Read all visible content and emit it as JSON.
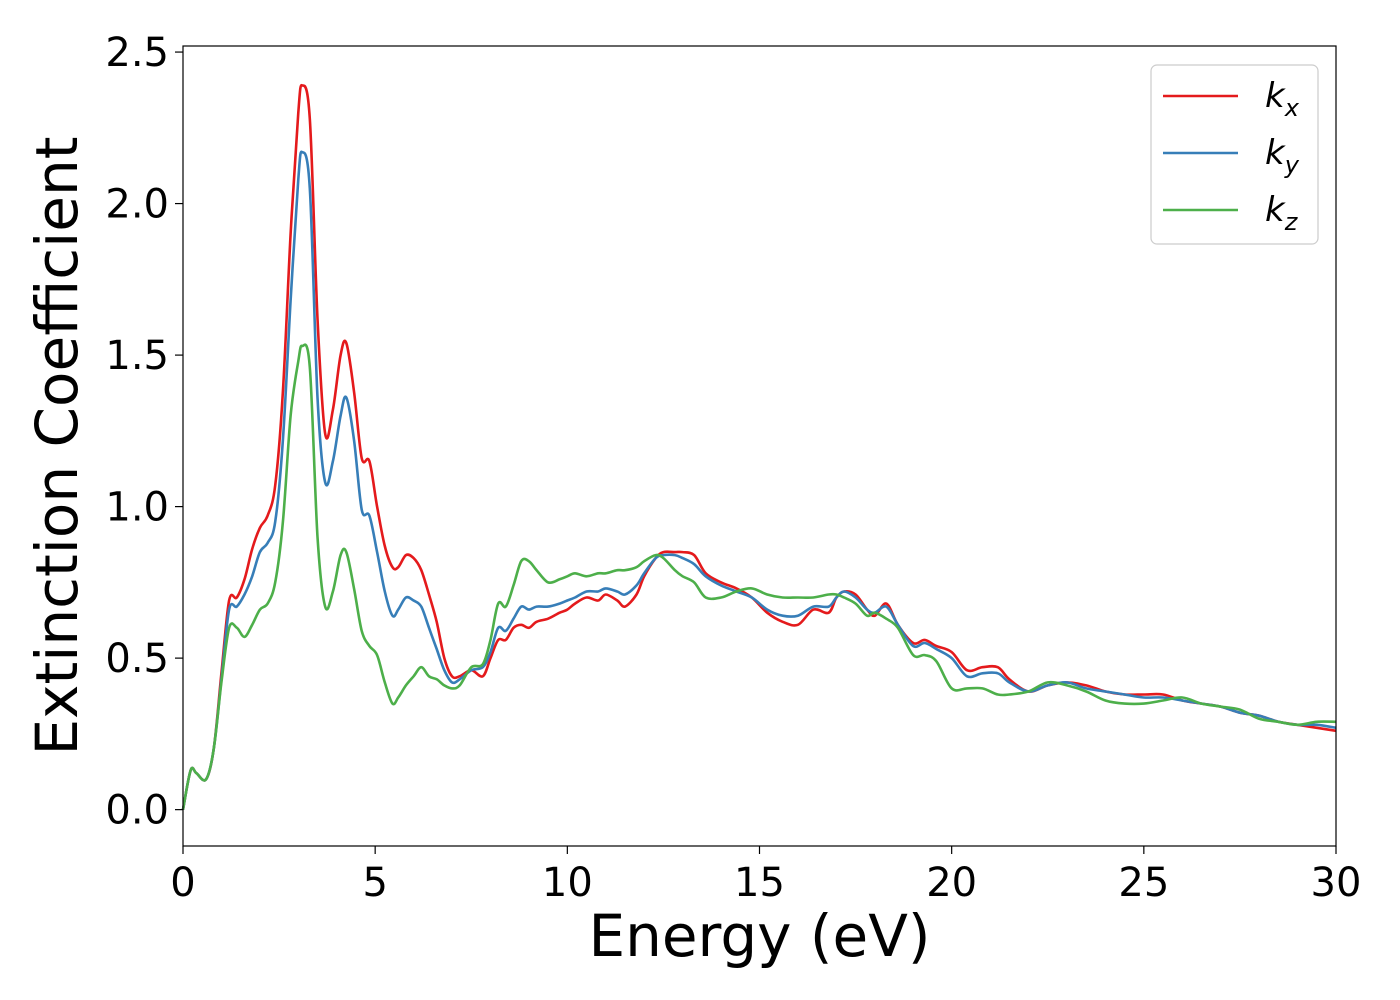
{
  "chart_data": {
    "type": "line",
    "xlabel": "Energy (eV)",
    "ylabel": "Extinction Coefficient",
    "xlim": [
      0,
      30
    ],
    "ylim": [
      -0.12,
      2.52
    ],
    "xticks": [
      0,
      5,
      10,
      15,
      20,
      25,
      30
    ],
    "xtick_labels": [
      "0",
      "5",
      "10",
      "15",
      "20",
      "25",
      "30"
    ],
    "yticks": [
      0.0,
      0.5,
      1.0,
      1.5,
      2.0,
      2.5
    ],
    "ytick_labels": [
      "0.0",
      "0.5",
      "1.0",
      "1.5",
      "2.0",
      "2.5"
    ],
    "grid": false,
    "legend_position": "top-right",
    "series": [
      {
        "name": "kx",
        "name_main": "k",
        "name_sub": "x",
        "color": "#e41a1c",
        "x": [
          0,
          0.2,
          0.35,
          0.6,
          0.8,
          1.0,
          1.2,
          1.4,
          1.6,
          1.8,
          2.0,
          2.2,
          2.4,
          2.6,
          2.8,
          3.0,
          3.1,
          3.3,
          3.5,
          3.7,
          3.9,
          4.1,
          4.25,
          4.45,
          4.65,
          4.85,
          5.05,
          5.25,
          5.45,
          5.6,
          5.8,
          6.0,
          6.2,
          6.4,
          6.6,
          6.8,
          7.0,
          7.2,
          7.5,
          7.8,
          8.0,
          8.2,
          8.4,
          8.6,
          8.8,
          9.0,
          9.2,
          9.5,
          9.8,
          10.0,
          10.2,
          10.5,
          10.8,
          11.0,
          11.3,
          11.5,
          11.8,
          12.0,
          12.3,
          12.5,
          12.8,
          13.0,
          13.3,
          13.6,
          14.0,
          14.4,
          14.8,
          15.2,
          15.6,
          16.0,
          16.4,
          16.8,
          17.0,
          17.2,
          17.5,
          17.8,
          18.0,
          18.3,
          18.6,
          19.0,
          19.3,
          19.6,
          20.0,
          20.4,
          20.8,
          21.2,
          21.5,
          22.0,
          22.5,
          23.0,
          23.5,
          24.0,
          24.5,
          25.0,
          25.5,
          26.0,
          26.5,
          27.0,
          27.5,
          28.0,
          28.5,
          29.0,
          29.5,
          30.0
        ],
        "values": [
          0.0,
          0.13,
          0.12,
          0.1,
          0.2,
          0.45,
          0.69,
          0.7,
          0.76,
          0.86,
          0.93,
          0.97,
          1.07,
          1.38,
          1.9,
          2.3,
          2.39,
          2.28,
          1.62,
          1.24,
          1.32,
          1.5,
          1.54,
          1.38,
          1.16,
          1.15,
          1.0,
          0.87,
          0.8,
          0.8,
          0.84,
          0.83,
          0.79,
          0.71,
          0.62,
          0.5,
          0.44,
          0.44,
          0.46,
          0.44,
          0.5,
          0.56,
          0.56,
          0.6,
          0.61,
          0.6,
          0.62,
          0.63,
          0.65,
          0.66,
          0.68,
          0.7,
          0.69,
          0.71,
          0.69,
          0.67,
          0.71,
          0.77,
          0.83,
          0.85,
          0.85,
          0.85,
          0.84,
          0.78,
          0.75,
          0.73,
          0.7,
          0.65,
          0.62,
          0.61,
          0.66,
          0.65,
          0.7,
          0.72,
          0.71,
          0.66,
          0.64,
          0.68,
          0.61,
          0.55,
          0.56,
          0.54,
          0.52,
          0.46,
          0.47,
          0.47,
          0.43,
          0.39,
          0.41,
          0.42,
          0.41,
          0.39,
          0.38,
          0.38,
          0.38,
          0.36,
          0.35,
          0.34,
          0.32,
          0.31,
          0.29,
          0.28,
          0.27,
          0.26
        ]
      },
      {
        "name": "ky",
        "name_main": "k",
        "name_sub": "y",
        "color": "#377eb8",
        "x": [
          0,
          0.2,
          0.35,
          0.6,
          0.8,
          1.0,
          1.2,
          1.4,
          1.6,
          1.8,
          2.0,
          2.2,
          2.4,
          2.6,
          2.8,
          3.0,
          3.1,
          3.3,
          3.5,
          3.7,
          3.9,
          4.1,
          4.25,
          4.45,
          4.65,
          4.85,
          5.05,
          5.25,
          5.45,
          5.6,
          5.8,
          6.0,
          6.2,
          6.4,
          6.6,
          6.8,
          7.0,
          7.2,
          7.5,
          7.8,
          8.0,
          8.2,
          8.4,
          8.6,
          8.8,
          9.0,
          9.2,
          9.5,
          9.8,
          10.0,
          10.2,
          10.5,
          10.8,
          11.0,
          11.3,
          11.5,
          11.8,
          12.0,
          12.3,
          12.5,
          12.8,
          13.0,
          13.3,
          13.6,
          14.0,
          14.4,
          14.8,
          15.2,
          15.6,
          16.0,
          16.4,
          16.8,
          17.0,
          17.2,
          17.5,
          17.8,
          18.0,
          18.3,
          18.6,
          19.0,
          19.3,
          19.6,
          20.0,
          20.4,
          20.8,
          21.2,
          21.5,
          22.0,
          22.5,
          23.0,
          23.5,
          24.0,
          24.5,
          25.0,
          25.5,
          26.0,
          26.5,
          27.0,
          27.5,
          28.0,
          28.5,
          29.0,
          29.5,
          30.0
        ],
        "values": [
          0.0,
          0.13,
          0.12,
          0.1,
          0.2,
          0.43,
          0.66,
          0.67,
          0.71,
          0.77,
          0.85,
          0.88,
          0.95,
          1.22,
          1.68,
          2.08,
          2.17,
          2.05,
          1.36,
          1.08,
          1.15,
          1.3,
          1.36,
          1.22,
          0.99,
          0.97,
          0.85,
          0.72,
          0.64,
          0.66,
          0.7,
          0.69,
          0.67,
          0.6,
          0.53,
          0.46,
          0.42,
          0.43,
          0.46,
          0.47,
          0.52,
          0.6,
          0.59,
          0.63,
          0.67,
          0.66,
          0.67,
          0.67,
          0.68,
          0.69,
          0.7,
          0.72,
          0.72,
          0.73,
          0.72,
          0.71,
          0.74,
          0.78,
          0.83,
          0.84,
          0.84,
          0.83,
          0.81,
          0.77,
          0.74,
          0.72,
          0.7,
          0.66,
          0.64,
          0.64,
          0.67,
          0.67,
          0.7,
          0.72,
          0.7,
          0.66,
          0.65,
          0.67,
          0.61,
          0.54,
          0.55,
          0.53,
          0.5,
          0.44,
          0.45,
          0.45,
          0.42,
          0.39,
          0.41,
          0.42,
          0.4,
          0.39,
          0.38,
          0.37,
          0.37,
          0.36,
          0.35,
          0.34,
          0.32,
          0.31,
          0.29,
          0.28,
          0.28,
          0.27
        ]
      },
      {
        "name": "kz",
        "name_main": "k",
        "name_sub": "z",
        "color": "#4daf4a",
        "x": [
          0,
          0.2,
          0.35,
          0.6,
          0.8,
          1.0,
          1.2,
          1.4,
          1.6,
          1.8,
          2.0,
          2.2,
          2.4,
          2.6,
          2.8,
          3.0,
          3.1,
          3.3,
          3.5,
          3.7,
          3.9,
          4.1,
          4.25,
          4.45,
          4.65,
          4.85,
          5.05,
          5.25,
          5.45,
          5.6,
          5.8,
          6.0,
          6.2,
          6.4,
          6.6,
          6.8,
          7.0,
          7.2,
          7.5,
          7.8,
          8.0,
          8.2,
          8.4,
          8.6,
          8.8,
          9.0,
          9.2,
          9.5,
          9.8,
          10.0,
          10.2,
          10.5,
          10.8,
          11.0,
          11.3,
          11.5,
          11.8,
          12.0,
          12.3,
          12.5,
          12.8,
          13.0,
          13.3,
          13.6,
          14.0,
          14.4,
          14.8,
          15.2,
          15.6,
          16.0,
          16.4,
          16.8,
          17.0,
          17.2,
          17.5,
          17.8,
          18.0,
          18.3,
          18.6,
          19.0,
          19.3,
          19.6,
          20.0,
          20.4,
          20.8,
          21.2,
          21.5,
          22.0,
          22.5,
          23.0,
          23.5,
          24.0,
          24.5,
          25.0,
          25.5,
          26.0,
          26.5,
          27.0,
          27.5,
          28.0,
          28.5,
          29.0,
          29.5,
          30.0
        ],
        "values": [
          0.0,
          0.13,
          0.12,
          0.1,
          0.2,
          0.42,
          0.6,
          0.6,
          0.57,
          0.61,
          0.66,
          0.68,
          0.75,
          0.95,
          1.3,
          1.48,
          1.53,
          1.46,
          0.9,
          0.67,
          0.72,
          0.84,
          0.85,
          0.73,
          0.59,
          0.54,
          0.51,
          0.42,
          0.35,
          0.37,
          0.41,
          0.44,
          0.47,
          0.44,
          0.43,
          0.41,
          0.4,
          0.41,
          0.47,
          0.48,
          0.56,
          0.68,
          0.67,
          0.74,
          0.82,
          0.82,
          0.79,
          0.75,
          0.76,
          0.77,
          0.78,
          0.77,
          0.78,
          0.78,
          0.79,
          0.79,
          0.8,
          0.82,
          0.84,
          0.83,
          0.79,
          0.77,
          0.75,
          0.7,
          0.7,
          0.72,
          0.73,
          0.71,
          0.7,
          0.7,
          0.7,
          0.71,
          0.71,
          0.7,
          0.68,
          0.64,
          0.65,
          0.63,
          0.6,
          0.51,
          0.51,
          0.49,
          0.4,
          0.4,
          0.4,
          0.38,
          0.38,
          0.39,
          0.42,
          0.41,
          0.39,
          0.36,
          0.35,
          0.35,
          0.36,
          0.37,
          0.35,
          0.34,
          0.33,
          0.3,
          0.29,
          0.28,
          0.29,
          0.29
        ]
      }
    ]
  }
}
